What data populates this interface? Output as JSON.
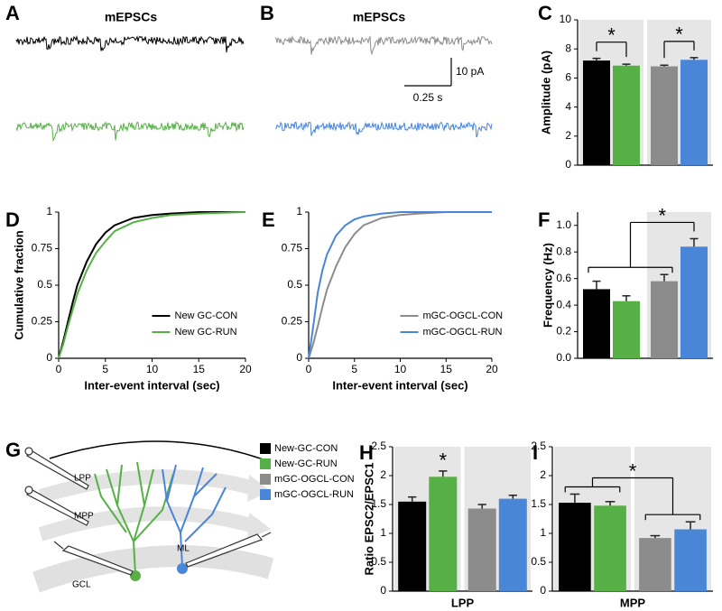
{
  "chart_data": [
    {
      "type": "trace",
      "panel": "A",
      "title": "mEPSCs",
      "colors": [
        "#000000",
        "#56b046"
      ]
    },
    {
      "type": "trace",
      "panel": "B",
      "title": "mEPSCs",
      "colors": [
        "#8c8c8c",
        "#4a86d8"
      ],
      "scale_labels": [
        "10 pA",
        "0.25 s"
      ]
    },
    {
      "type": "bar",
      "panel": "C",
      "ylabel": "Amplitude (pA)",
      "values": [
        7.2,
        6.85,
        6.8,
        7.25
      ],
      "errors": [
        0.15,
        0.1,
        0.08,
        0.15
      ],
      "colors": [
        "#000000",
        "#56b046",
        "#8c8c8c",
        "#4a86d8"
      ],
      "ylim": [
        0,
        10
      ],
      "yticks": [
        0,
        2,
        4,
        6,
        8,
        10
      ],
      "comparisons": [
        {
          "label": "*",
          "groups": [
            [
              0
            ],
            [
              1
            ]
          ]
        },
        {
          "label": "*",
          "groups": [
            [
              2
            ],
            [
              3
            ]
          ]
        }
      ]
    },
    {
      "type": "line",
      "panel": "D",
      "xlabel": "Inter-event interval (sec)",
      "ylabel": "Cumulative fraction",
      "x": [
        0,
        0.5,
        1,
        1.5,
        2,
        3,
        4,
        5,
        6,
        8,
        10,
        12,
        15,
        20
      ],
      "series": [
        {
          "name": "New GC-CON",
          "color": "#000000",
          "values": [
            0,
            0.12,
            0.25,
            0.38,
            0.5,
            0.66,
            0.78,
            0.86,
            0.91,
            0.96,
            0.98,
            0.99,
            1,
            1
          ]
        },
        {
          "name": "New GC-RUN",
          "color": "#56b046",
          "values": [
            0,
            0.1,
            0.22,
            0.33,
            0.44,
            0.6,
            0.72,
            0.8,
            0.87,
            0.93,
            0.96,
            0.98,
            0.99,
            1
          ]
        }
      ],
      "xlim": [
        0,
        20
      ],
      "ylim": [
        0,
        1
      ],
      "xticks": [
        0,
        5,
        10,
        15,
        20
      ],
      "yticks": [
        0,
        0.25,
        0.5,
        0.75,
        1
      ],
      "legend": "lower right"
    },
    {
      "type": "line",
      "panel": "E",
      "xlabel": "Inter-event interval (sec)",
      "x": [
        0,
        0.5,
        1,
        1.5,
        2,
        3,
        4,
        5,
        6,
        8,
        10,
        12,
        15,
        20
      ],
      "series": [
        {
          "name": "mGC-OGCL-CON",
          "color": "#8c8c8c",
          "values": [
            0,
            0.1,
            0.22,
            0.35,
            0.47,
            0.63,
            0.76,
            0.85,
            0.91,
            0.96,
            0.98,
            0.99,
            1,
            1
          ]
        },
        {
          "name": "mGC-OGCL-RUN",
          "color": "#4a86d8",
          "values": [
            0,
            0.22,
            0.45,
            0.6,
            0.71,
            0.84,
            0.91,
            0.95,
            0.97,
            0.99,
            1,
            1,
            1,
            1
          ]
        }
      ],
      "xlim": [
        0,
        20
      ],
      "ylim": [
        0,
        1
      ],
      "xticks": [
        0,
        5,
        10,
        15,
        20
      ],
      "yticks": [
        0,
        0.25,
        0.5,
        0.75,
        1
      ],
      "legend": "lower right"
    },
    {
      "type": "bar",
      "panel": "F",
      "ylabel": "Frequency (Hz)",
      "values": [
        0.52,
        0.43,
        0.58,
        0.84
      ],
      "errors": [
        0.06,
        0.04,
        0.05,
        0.06
      ],
      "colors": [
        "#000000",
        "#56b046",
        "#8c8c8c",
        "#4a86d8"
      ],
      "ylim": [
        0,
        1.1
      ],
      "yticks": [
        {
          "value": 0,
          "label": "0.0"
        },
        0.2,
        0.4,
        0.6,
        0.8,
        {
          "value": 1,
          "label": "1.0"
        }
      ],
      "comparisons": [
        {
          "label": "*",
          "groups": [
            [
              0,
              1,
              2
            ],
            [
              3
            ]
          ]
        }
      ]
    },
    {
      "type": "diagram",
      "panel": "G",
      "labels": [
        "LPP",
        "MPP",
        "ML",
        "GCL"
      ],
      "legend": [
        {
          "name": "New-GC-CON",
          "color": "#000000"
        },
        {
          "name": "New-GC-RUN",
          "color": "#56b046"
        },
        {
          "name": "mGC-OGCL-CON",
          "color": "#8c8c8c"
        },
        {
          "name": "mGC-OGCL-RUN",
          "color": "#4a86d8"
        }
      ]
    },
    {
      "type": "bar",
      "panel": "H",
      "ylabel": "Ratio EPSC2/EPSC1",
      "xlabel": "LPP",
      "values": [
        1.55,
        1.98,
        1.43,
        1.6
      ],
      "errors": [
        0.08,
        0.1,
        0.07,
        0.06
      ],
      "colors": [
        "#000000",
        "#56b046",
        "#8c8c8c",
        "#4a86d8"
      ],
      "ylim": [
        0,
        2.5
      ],
      "yticks": [
        0,
        0.5,
        1,
        1.5,
        2,
        2.5
      ],
      "comparisons": [
        {
          "label": "*",
          "groups": [
            [
              1
            ]
          ]
        }
      ]
    },
    {
      "type": "bar",
      "panel": "I",
      "xlabel": "MPP",
      "values": [
        1.53,
        1.48,
        0.92,
        1.07
      ],
      "errors": [
        0.15,
        0.07,
        0.04,
        0.13
      ],
      "colors": [
        "#000000",
        "#56b046",
        "#8c8c8c",
        "#4a86d8"
      ],
      "ylim": [
        0,
        2.5
      ],
      "yticks": [
        0,
        0.5,
        1,
        1.5,
        2,
        2.5
      ],
      "comparisons": [
        {
          "label": "*",
          "groups": [
            [
              0,
              1
            ],
            [
              2,
              3
            ]
          ]
        }
      ]
    }
  ]
}
